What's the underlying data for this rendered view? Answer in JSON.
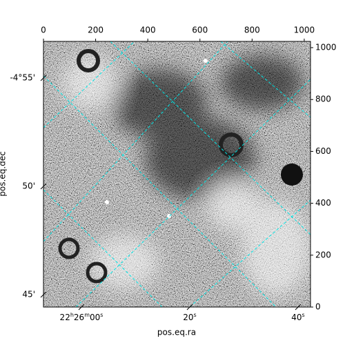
{
  "chart_data": {
    "type": "image",
    "xlabel": "pos.eq.ra",
    "ylabel": "pos.eq.dec",
    "xlim": [
      0,
      1024
    ],
    "ylim": [
      0,
      1024
    ],
    "xticks": [
      0,
      200,
      400,
      600,
      800,
      1000
    ],
    "yticks": [
      0,
      200,
      400,
      600,
      800,
      1000
    ],
    "ra_tick_labels": [
      "22h26m00s",
      "20s",
      "40s"
    ],
    "dec_tick_labels": [
      "-4°55'",
      "50'",
      "45'"
    ],
    "grid_color": "#00e5e5"
  }
}
